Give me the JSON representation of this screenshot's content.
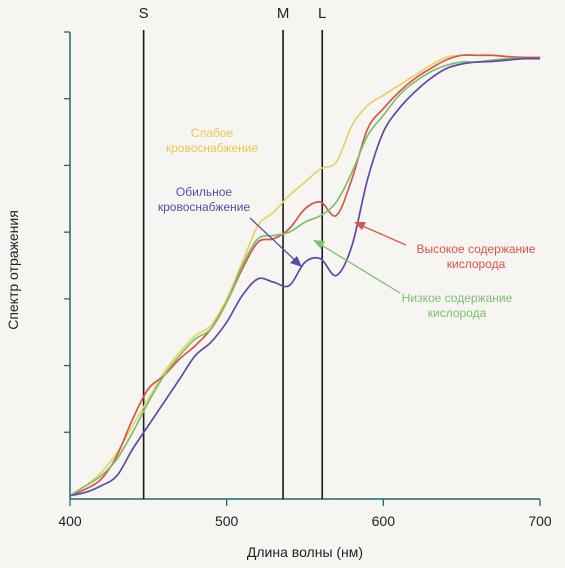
{
  "chart_data": {
    "type": "line",
    "xlabel": "Длина волны (нм)",
    "ylabel": "Спектр отражения",
    "xlim": [
      400,
      700
    ],
    "ylim": [
      0,
      7
    ],
    "grid": false,
    "x_ticks": [
      400,
      500,
      600,
      700
    ],
    "y_tick_count": 7,
    "cones": [
      {
        "name": "S",
        "x": 447
      },
      {
        "name": "M",
        "x": 536
      },
      {
        "name": "L",
        "x": 561
      }
    ],
    "series": [
      {
        "key": "low_perfusion",
        "color": "#e8d264",
        "x": [
          400,
          410,
          420,
          430,
          440,
          450,
          460,
          470,
          480,
          490,
          500,
          510,
          520,
          530,
          540,
          550,
          560,
          570,
          580,
          590,
          600,
          610,
          620,
          630,
          640,
          650,
          660,
          670,
          680,
          690,
          700
        ],
        "y": [
          0.05,
          0.2,
          0.4,
          0.7,
          1.1,
          1.5,
          1.9,
          2.2,
          2.45,
          2.6,
          3.0,
          3.55,
          4.1,
          4.3,
          4.55,
          4.75,
          4.95,
          5.05,
          5.6,
          5.9,
          6.05,
          6.2,
          6.35,
          6.5,
          6.62,
          6.65,
          6.65,
          6.65,
          6.63,
          6.6,
          6.62
        ]
      },
      {
        "key": "high_oxygen",
        "color": "#d9554a",
        "x": [
          400,
          410,
          420,
          430,
          440,
          450,
          460,
          470,
          480,
          490,
          500,
          510,
          520,
          530,
          540,
          550,
          560,
          570,
          580,
          590,
          600,
          610,
          620,
          630,
          640,
          650,
          660,
          670,
          680,
          690,
          700
        ],
        "y": [
          0.05,
          0.15,
          0.3,
          0.65,
          1.2,
          1.65,
          1.85,
          2.1,
          2.3,
          2.55,
          2.95,
          3.45,
          3.85,
          3.9,
          4.05,
          4.35,
          4.45,
          4.25,
          4.8,
          5.55,
          5.85,
          6.1,
          6.3,
          6.45,
          6.58,
          6.65,
          6.65,
          6.65,
          6.63,
          6.62,
          6.62
        ]
      },
      {
        "key": "low_oxygen",
        "color": "#79c26a",
        "x": [
          400,
          410,
          420,
          430,
          440,
          450,
          460,
          470,
          480,
          490,
          500,
          510,
          520,
          530,
          540,
          550,
          560,
          570,
          580,
          590,
          600,
          610,
          620,
          630,
          640,
          650,
          660,
          670,
          680,
          690,
          700
        ],
        "y": [
          0.05,
          0.2,
          0.35,
          0.6,
          1.0,
          1.45,
          1.85,
          2.15,
          2.4,
          2.55,
          2.95,
          3.5,
          3.9,
          3.95,
          4.0,
          4.15,
          4.25,
          4.45,
          4.9,
          5.45,
          5.75,
          6.05,
          6.25,
          6.4,
          6.5,
          6.55,
          6.55,
          6.58,
          6.6,
          6.6,
          6.6
        ]
      },
      {
        "key": "high_perfusion",
        "color": "#5c4aa6",
        "x": [
          400,
          410,
          420,
          430,
          440,
          450,
          460,
          470,
          480,
          490,
          500,
          510,
          520,
          530,
          540,
          550,
          560,
          570,
          580,
          590,
          600,
          610,
          620,
          630,
          640,
          650,
          660,
          670,
          680,
          690,
          700
        ],
        "y": [
          0.05,
          0.1,
          0.2,
          0.35,
          0.75,
          1.1,
          1.45,
          1.8,
          2.15,
          2.35,
          2.65,
          3.05,
          3.3,
          3.25,
          3.2,
          3.55,
          3.6,
          3.35,
          3.8,
          4.8,
          5.5,
          5.85,
          6.1,
          6.3,
          6.45,
          6.52,
          6.55,
          6.56,
          6.58,
          6.6,
          6.6
        ]
      }
    ]
  },
  "annotations": {
    "low_perfusion": [
      "Слабое",
      "кровоснабжение"
    ],
    "high_perfusion": [
      "Обильное",
      "кровоснабжение"
    ],
    "high_oxygen": [
      "Высокое содержание",
      "кислорода"
    ],
    "low_oxygen": [
      "Низкое содержание",
      "кислорода"
    ]
  }
}
